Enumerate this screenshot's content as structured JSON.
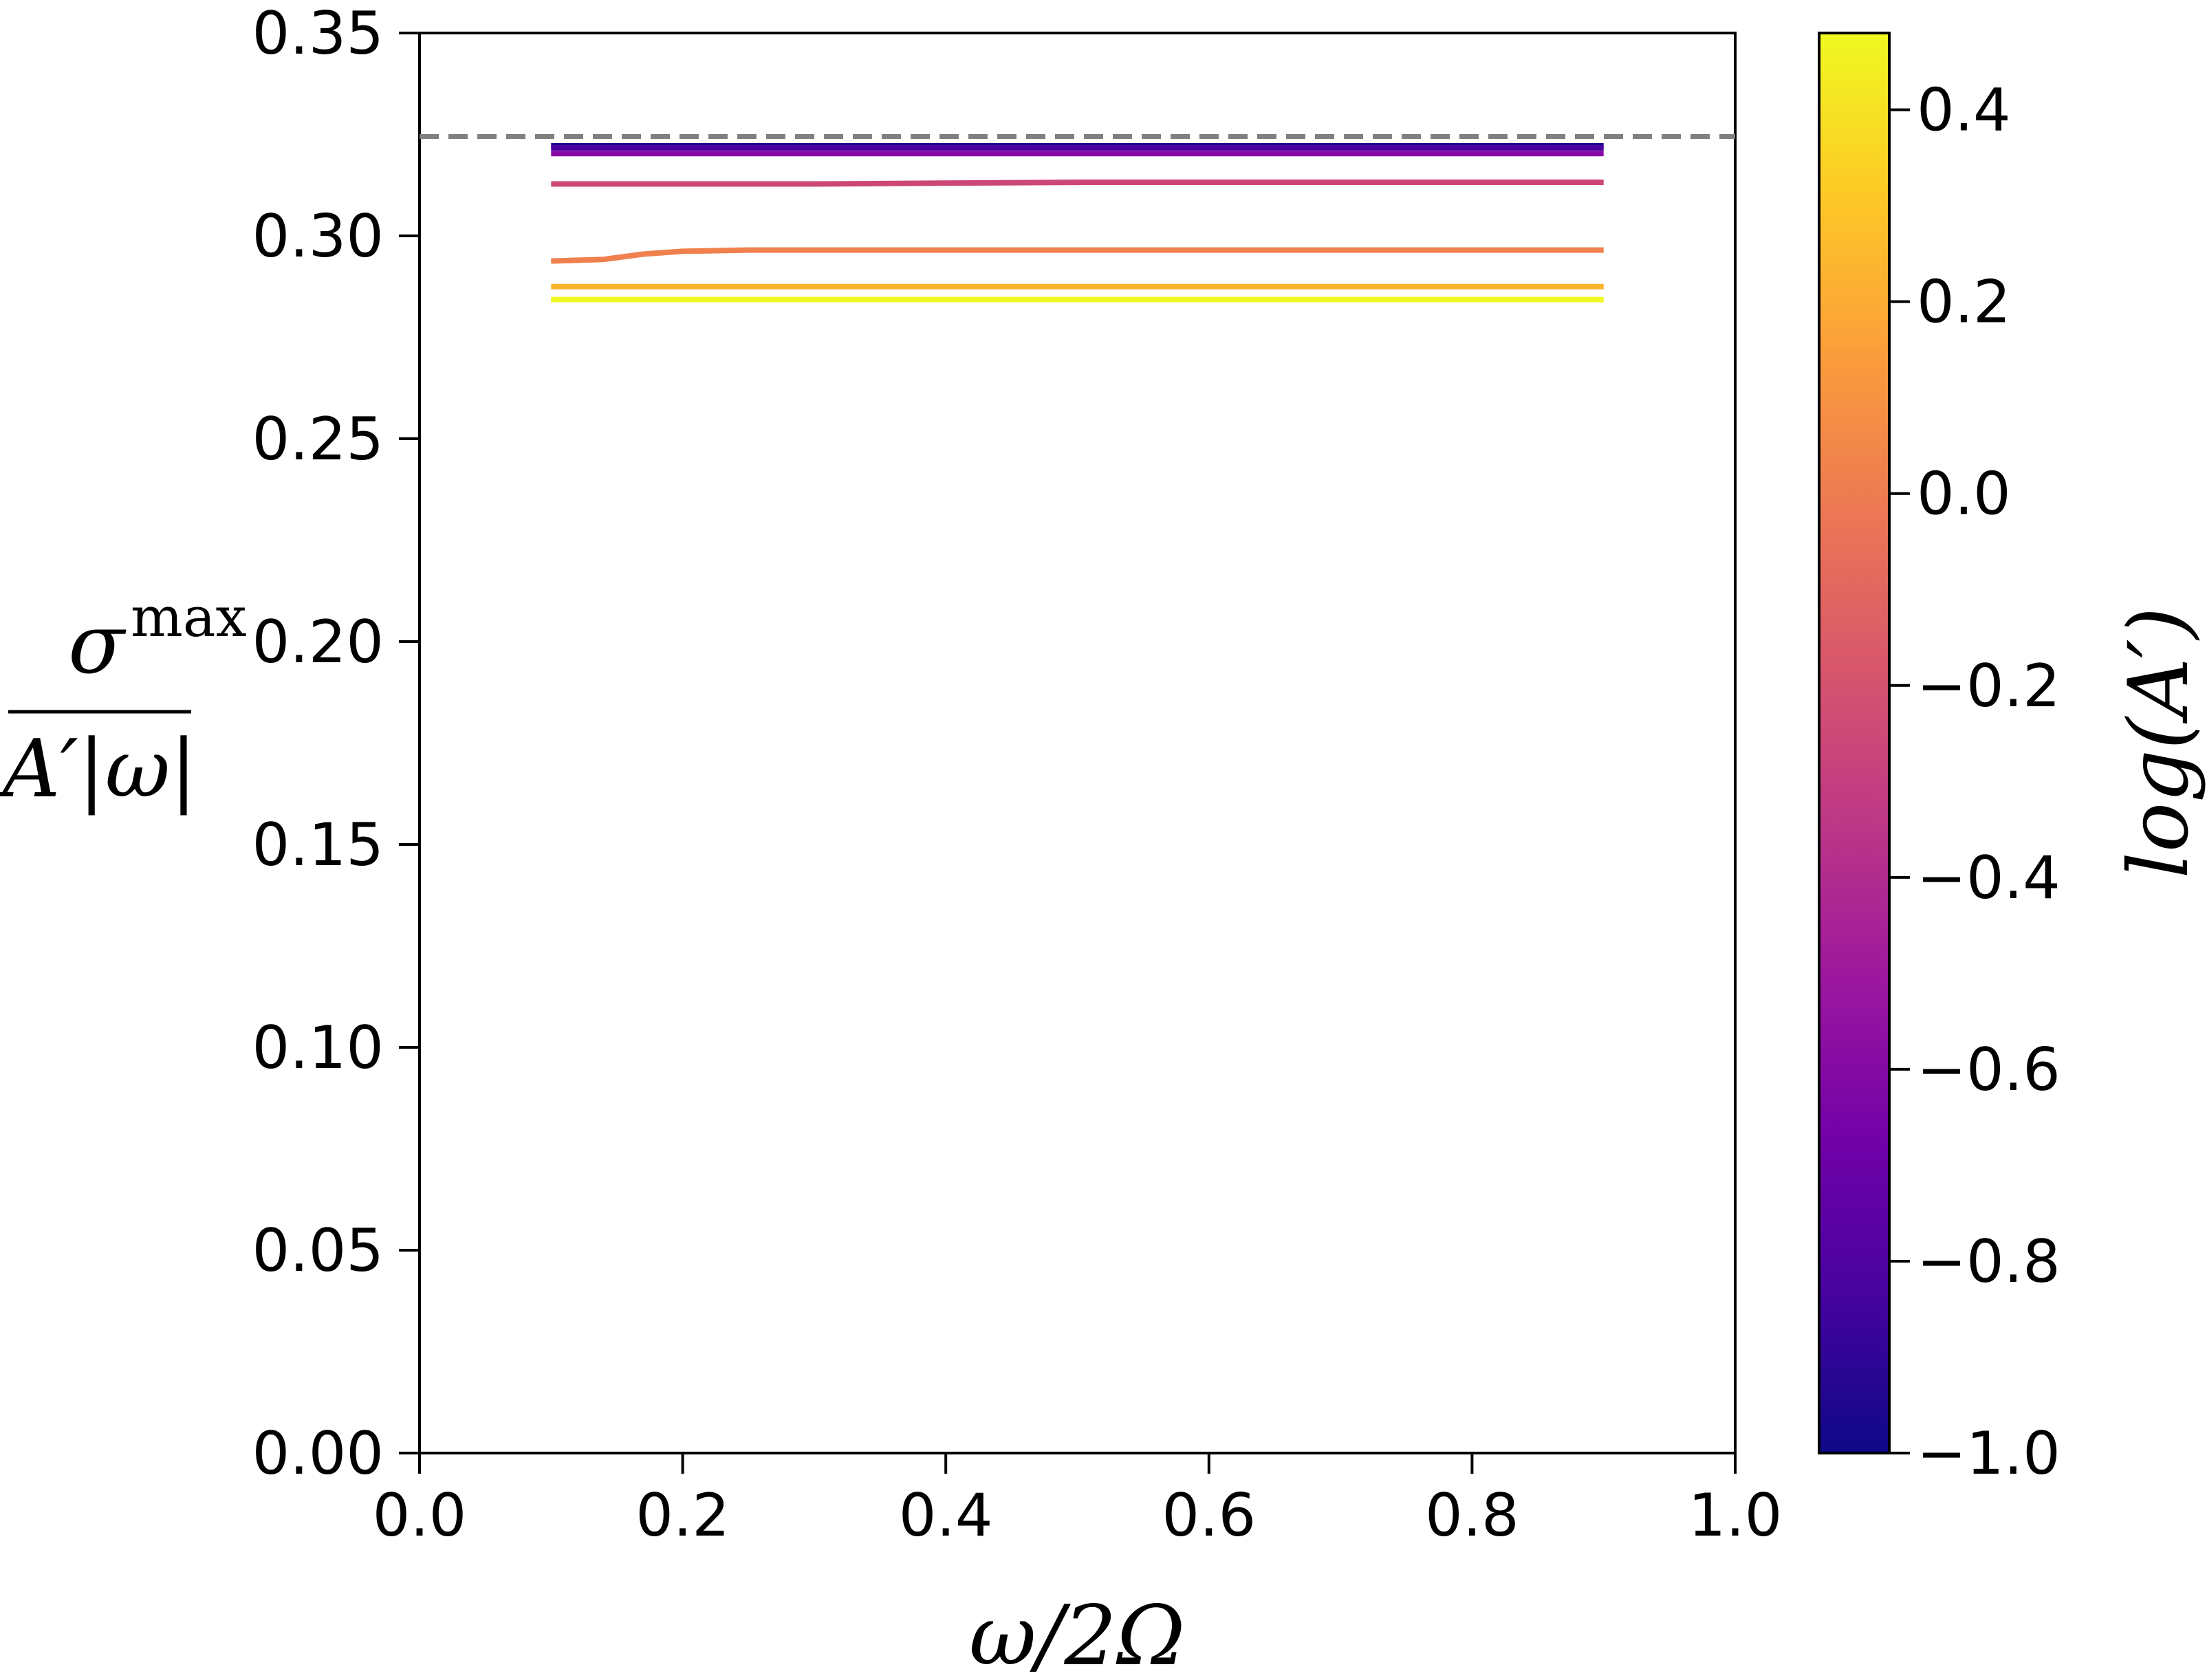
{
  "chart_data": {
    "type": "line",
    "xlabel": "ω/2Ω",
    "ylabel": {
      "numerator": "σ",
      "superscript": "max",
      "denominator": "A′|ω|"
    },
    "xlim": [
      0.0,
      1.0
    ],
    "ylim": [
      0.0,
      0.35
    ],
    "x_ticks": [
      "0.0",
      "0.2",
      "0.4",
      "0.6",
      "0.8",
      "1.0"
    ],
    "y_ticks": [
      "0.00",
      "0.05",
      "0.10",
      "0.15",
      "0.20",
      "0.25",
      "0.30",
      "0.35"
    ],
    "grid": false,
    "reference_line": {
      "y": 0.3245,
      "style": "dashed",
      "color": "#808080"
    },
    "series": [
      {
        "log_A": -1.0,
        "color": "#1d068f",
        "x": [
          0.1,
          0.9
        ],
        "y": [
          0.3222,
          0.3222
        ]
      },
      {
        "log_A": -0.8,
        "color": "#4903a0",
        "x": [
          0.1,
          0.9
        ],
        "y": [
          0.3217,
          0.3217
        ]
      },
      {
        "log_A": -0.6,
        "color": "#8808a6",
        "x": [
          0.1,
          0.9
        ],
        "y": [
          0.3203,
          0.3203
        ]
      },
      {
        "log_A": -0.3,
        "color": "#cc4778",
        "x": [
          0.1,
          0.2,
          0.3,
          0.4,
          0.5,
          0.6,
          0.7,
          0.8,
          0.9
        ],
        "y": [
          0.3128,
          0.3128,
          0.3128,
          0.313,
          0.3132,
          0.3132,
          0.3132,
          0.3132,
          0.3132
        ]
      },
      {
        "log_A": 0.0,
        "color": "#f0804d",
        "x": [
          0.1,
          0.14,
          0.17,
          0.2,
          0.25,
          0.3,
          0.4,
          0.5,
          0.6,
          0.7,
          0.8,
          0.9
        ],
        "y": [
          0.2938,
          0.2942,
          0.2955,
          0.2962,
          0.2965,
          0.2965,
          0.2965,
          0.2965,
          0.2965,
          0.2965,
          0.2965,
          0.2965
        ]
      },
      {
        "log_A": 0.25,
        "color": "#fbb32f",
        "x": [
          0.1,
          0.9
        ],
        "y": [
          0.2875,
          0.2875
        ]
      },
      {
        "log_A": 0.45,
        "color": "#f0f921",
        "x": [
          0.1,
          0.9
        ],
        "y": [
          0.2843,
          0.2843
        ]
      }
    ],
    "colorbar": {
      "label": "log(A′)",
      "range": [
        -1.0,
        0.48
      ],
      "ticks": [
        "−1.0",
        "−0.8",
        "−0.6",
        "−0.4",
        "−0.2",
        "0.0",
        "0.2",
        "0.4"
      ],
      "colors": [
        "#0d0887",
        "#46039f",
        "#7201a8",
        "#9c179e",
        "#bd3786",
        "#d8576b",
        "#ed7953",
        "#fb9f3a",
        "#fdca26",
        "#f0f921"
      ]
    }
  }
}
